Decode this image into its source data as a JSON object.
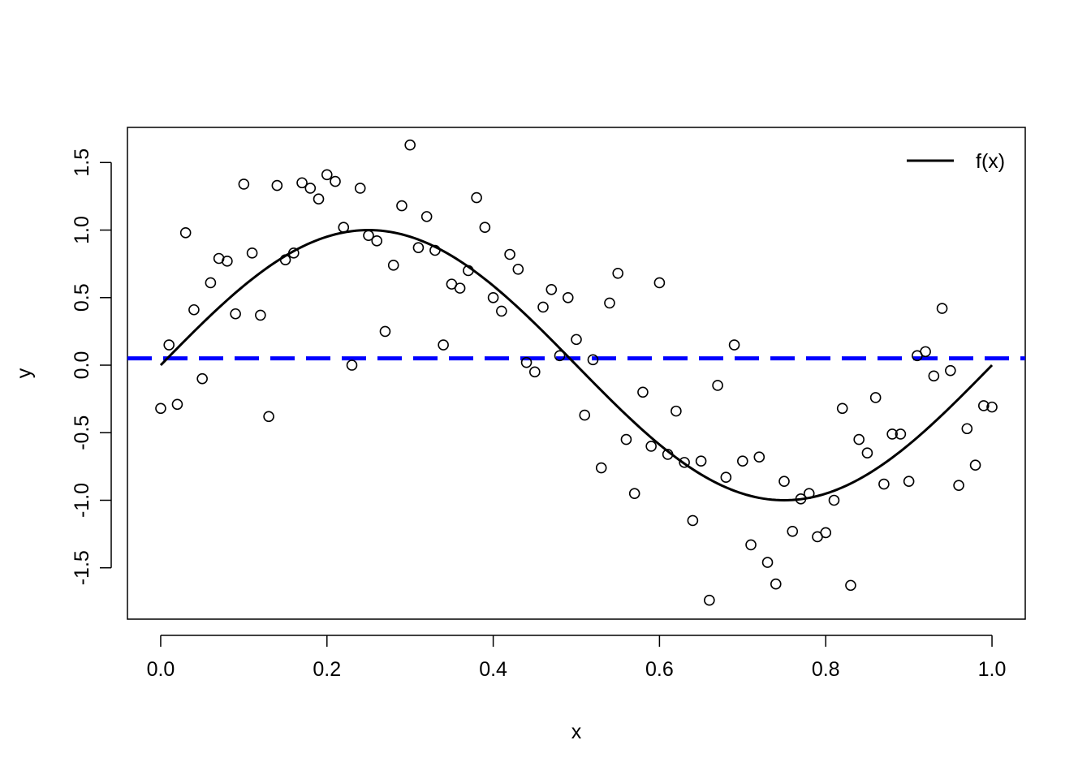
{
  "chart_data": {
    "type": "scatter",
    "title": "",
    "xlabel": "x",
    "ylabel": "y",
    "xlim": [
      -0.04,
      1.04
    ],
    "ylim": [
      -1.88,
      1.76
    ],
    "x_ticks": [
      0.0,
      0.2,
      0.4,
      0.6,
      0.8,
      1.0
    ],
    "x_tick_labels": [
      "0.0",
      "0.2",
      "0.4",
      "0.6",
      "0.8",
      "1.0"
    ],
    "y_ticks": [
      -1.5,
      -1.0,
      -0.5,
      0.0,
      0.5,
      1.0,
      1.5
    ],
    "y_tick_labels": [
      "-1.5",
      "-1.0",
      "-0.5",
      "0.0",
      "0.5",
      "1.0",
      "1.5"
    ],
    "grid": false,
    "legend": {
      "position": "top-right",
      "entries": [
        {
          "label": "f(x)",
          "style": "solid",
          "color": "#000000"
        }
      ]
    },
    "points": {
      "x": [
        0.0,
        0.01,
        0.02,
        0.03,
        0.04,
        0.05,
        0.06,
        0.07,
        0.08,
        0.09,
        0.1,
        0.11,
        0.12,
        0.13,
        0.14,
        0.15,
        0.16,
        0.17,
        0.18,
        0.19,
        0.2,
        0.21,
        0.22,
        0.23,
        0.24,
        0.25,
        0.26,
        0.27,
        0.28,
        0.29,
        0.3,
        0.31,
        0.32,
        0.33,
        0.34,
        0.35,
        0.36,
        0.37,
        0.38,
        0.39,
        0.4,
        0.41,
        0.42,
        0.43,
        0.44,
        0.45,
        0.46,
        0.47,
        0.48,
        0.49,
        0.5,
        0.51,
        0.52,
        0.53,
        0.54,
        0.55,
        0.56,
        0.57,
        0.58,
        0.59,
        0.6,
        0.61,
        0.62,
        0.63,
        0.64,
        0.65,
        0.66,
        0.67,
        0.68,
        0.69,
        0.7,
        0.71,
        0.72,
        0.73,
        0.74,
        0.75,
        0.76,
        0.77,
        0.78,
        0.79,
        0.8,
        0.81,
        0.82,
        0.83,
        0.84,
        0.85,
        0.86,
        0.87,
        0.88,
        0.89,
        0.9,
        0.91,
        0.92,
        0.93,
        0.94,
        0.95,
        0.96,
        0.97,
        0.98,
        0.99,
        1.0
      ],
      "y": [
        -0.32,
        0.15,
        -0.29,
        0.98,
        0.41,
        -0.1,
        0.61,
        0.79,
        0.77,
        0.38,
        1.34,
        0.83,
        0.37,
        -0.38,
        1.33,
        0.78,
        0.83,
        1.35,
        1.31,
        1.23,
        1.41,
        1.36,
        1.02,
        0.0,
        1.31,
        0.96,
        0.92,
        0.25,
        0.74,
        1.18,
        1.63,
        0.87,
        1.1,
        0.85,
        0.15,
        0.6,
        0.57,
        0.7,
        1.24,
        1.02,
        0.5,
        0.4,
        0.82,
        0.71,
        0.02,
        -0.05,
        0.43,
        0.56,
        0.07,
        0.5,
        0.19,
        -0.37,
        0.04,
        -0.76,
        0.46,
        0.68,
        -0.55,
        -0.95,
        -0.2,
        -0.6,
        0.61,
        -0.66,
        -0.34,
        -0.72,
        -1.15,
        -0.71,
        -1.74,
        -0.15,
        -0.83,
        0.15,
        -0.71,
        -1.33,
        -0.68,
        -1.46,
        -1.62,
        -0.86,
        -1.23,
        -0.99,
        -0.95,
        -1.27,
        -1.24,
        -1.0,
        -0.32,
        -1.63,
        -0.55,
        -0.65,
        -0.24,
        -0.88,
        -0.51,
        -0.51,
        -0.86,
        0.07,
        0.1,
        -0.08,
        0.42,
        -0.04,
        -0.89,
        -0.47,
        -0.74,
        -0.3,
        -0.31
      ],
      "color": "#000000"
    },
    "curve": {
      "name": "f(x)",
      "function": "sin(2*pi*x)",
      "color": "#000000",
      "x_range": [
        0.0,
        1.0
      ]
    },
    "reference_line": {
      "y": 0.05,
      "style": "dashed",
      "color": "#0000ff"
    }
  }
}
